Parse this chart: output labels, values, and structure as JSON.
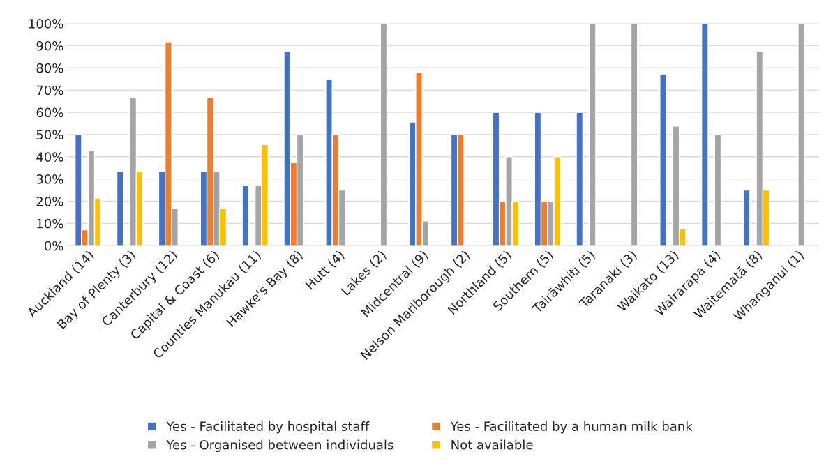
{
  "chart_data": {
    "type": "bar",
    "categories": [
      "Auckland (14)",
      "Bay of Plenty (3)",
      "Canterbury (12)",
      "Capital & Coast (6)",
      "Counties Manukau (11)",
      "Hawke's Bay (8)",
      "Hutt (4)",
      "Lakes (2)",
      "Midcentral (9)",
      "Nelson Marlborough (2)",
      "Northland (5)",
      "Southern (5)",
      "Tairāwhiti (5)",
      "Taranaki (3)",
      "Waikato (13)",
      "Wairarapa (4)",
      "Waitematā (8)",
      "Whanganui (1)"
    ],
    "series": [
      {
        "name": "Yes - Facilitated by hospital staff",
        "color": "#4472c4",
        "values": [
          50,
          33.3,
          33.3,
          33.3,
          27.3,
          87.5,
          75,
          null,
          55.6,
          50,
          60,
          60,
          60,
          null,
          76.9,
          100,
          25,
          null
        ]
      },
      {
        "name": "Yes - Facilitated by a human milk bank",
        "color": "#ed7d31",
        "values": [
          7.1,
          null,
          91.7,
          66.7,
          null,
          37.5,
          50,
          null,
          77.8,
          50,
          20,
          20,
          null,
          null,
          null,
          null,
          null,
          null
        ]
      },
      {
        "name": "Yes - Organised between individuals",
        "color": "#a5a5a5",
        "values": [
          42.9,
          66.7,
          16.7,
          33.3,
          27.3,
          50,
          25,
          100,
          11.1,
          null,
          40,
          20,
          100,
          100,
          53.8,
          50,
          87.5,
          100
        ]
      },
      {
        "name": "Not available",
        "color": "#ffc000",
        "values": [
          21.4,
          33.3,
          null,
          16.7,
          45.5,
          null,
          null,
          null,
          null,
          null,
          20,
          40,
          null,
          null,
          7.7,
          null,
          25,
          null
        ]
      }
    ],
    "ylim": [
      0,
      100
    ],
    "yticks": [
      {
        "value": 0,
        "label": "0%"
      },
      {
        "value": 10,
        "label": "10%"
      },
      {
        "value": 20,
        "label": "20%"
      },
      {
        "value": 30,
        "label": "30%"
      },
      {
        "value": 40,
        "label": "40%"
      },
      {
        "value": 50,
        "label": "50%"
      },
      {
        "value": 60,
        "label": "60%"
      },
      {
        "value": 70,
        "label": "70%"
      },
      {
        "value": 80,
        "label": "80%"
      },
      {
        "value": 90,
        "label": "90%"
      },
      {
        "value": 100,
        "label": "100%"
      }
    ],
    "grid": "y",
    "legend": "bottom"
  }
}
